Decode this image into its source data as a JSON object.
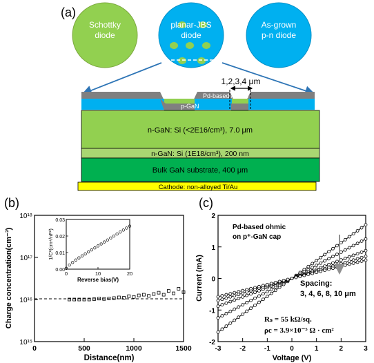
{
  "panel_a": {
    "label": "(a)",
    "circles": [
      {
        "line1": "Schottky",
        "line2": "diode"
      },
      {
        "line1": "planar-JBS",
        "line2": "diode"
      },
      {
        "line1": "As-grown",
        "line2": "p-n diode"
      }
    ],
    "spacing_label": "1,2,3,4 μm",
    "anode_label": "Pd-based Anode",
    "pgan_label": "p-GaN",
    "layers": {
      "drift": "n-GaN: Si (<2E16/cm³), 7.0 μm",
      "buffer": "n-GaN: Si (1E18/cm³), 200 nm",
      "substrate": "Bulk GaN substrate, 400 μm",
      "cathode": "Cathode: non-alloyed Ti/Au"
    },
    "colors": {
      "schottky": "#92d050",
      "jbs": "#00b0f0",
      "drift": "#92d050",
      "substrate": "#00b050",
      "cathode": "#ffff00",
      "anode": "#808080",
      "arrow": "#2e75b6"
    }
  },
  "panel_b": {
    "label": "(b)",
    "ylabel": "Charge concentration(cm⁻³)",
    "xlabel": "Distance(nm)",
    "xticks": [
      "0",
      "500",
      "1000",
      "1500"
    ],
    "yticks": [
      "10¹⁵",
      "10¹⁶",
      "10¹⁷",
      "10¹⁸"
    ],
    "inset": {
      "ylabel": "1/C²(cm⁴/nF²)",
      "xlabel": "Reverse bias(V)",
      "xticks": [
        "0",
        "10",
        "20"
      ],
      "yticks": [
        "0.00",
        "0.01",
        "0.02",
        "0.03"
      ]
    }
  },
  "panel_c": {
    "label": "(c)",
    "title_line1": "Pd-based ohmic",
    "title_line2": "on p⁺-GaN cap",
    "spacing_title": "Spacing:",
    "spacing_values": "3, 4, 6, 8, 10 μm",
    "rs": "Rₛ = 55 kΩ/sq.",
    "rhoc": "ρc = 3.9×10⁻⁵ Ω · cm²",
    "ylabel": "Current (mA)",
    "xlabel": "Voltage (V)",
    "xticks": [
      "-3",
      "-2",
      "-1",
      "0",
      "1",
      "2",
      "3"
    ],
    "yticks": [
      "-2",
      "-1",
      "0",
      "1",
      "2"
    ]
  },
  "chart_data": [
    {
      "type": "scatter",
      "xlabel": "Distance(nm)",
      "ylabel": "Charge concentration(cm⁻³)",
      "xlim": [
        0,
        1500
      ],
      "ylim": [
        1000000000000000.0,
        1e+18
      ],
      "yscale": "log",
      "reference_line": 1e+16,
      "series": [
        {
          "x": [
            350,
            400,
            450,
            500,
            550,
            600,
            650,
            700,
            750,
            800,
            850,
            900,
            950,
            1000,
            1050,
            1100,
            1150,
            1200,
            1250,
            1300,
            1350,
            1400,
            1450,
            1500
          ],
          "values": [
            1e+16,
            1e+16,
            1e+16,
            1e+16,
            1e+16,
            1.02e+16,
            1.05e+16,
            1.03e+16,
            1.06e+16,
            1.08e+16,
            1.12e+16,
            1.1e+16,
            1.2e+16,
            1.15e+16,
            1.25e+16,
            1.3e+16,
            1.22e+16,
            1.35e+16,
            1.45e+16,
            1.3e+16,
            1.6e+16,
            1.4e+16,
            1.8e+16,
            1.5e+16
          ]
        }
      ]
    },
    {
      "type": "scatter",
      "xlabel": "Reverse bias(V)",
      "ylabel": "1/C²(cm⁴/nF²)",
      "xlim": [
        0,
        20
      ],
      "ylim": [
        0,
        0.03
      ],
      "series": [
        {
          "x": [
            0,
            1,
            2,
            3,
            4,
            5,
            6,
            7,
            8,
            9,
            10,
            11,
            12,
            13,
            14,
            15,
            16,
            17,
            18,
            19,
            20
          ],
          "values": [
            0.0005,
            0.0025,
            0.004,
            0.0055,
            0.0068,
            0.008,
            0.0092,
            0.0104,
            0.0116,
            0.0128,
            0.014,
            0.0152,
            0.0164,
            0.0176,
            0.0188,
            0.02,
            0.0212,
            0.0224,
            0.0236,
            0.0248,
            0.026
          ]
        }
      ]
    },
    {
      "type": "line",
      "xlabel": "Voltage (V)",
      "ylabel": "Current (mA)",
      "xlim": [
        -3,
        3
      ],
      "ylim": [
        -2,
        2
      ],
      "x": [
        -3,
        -2.5,
        -2,
        -1.5,
        -1,
        -0.5,
        0,
        0.5,
        1,
        1.5,
        2,
        2.5,
        3
      ],
      "series": [
        {
          "name": "3 μm",
          "values": [
            -1.7,
            -1.417,
            -1.133,
            -0.85,
            -0.567,
            -0.283,
            0,
            0.283,
            0.567,
            0.85,
            1.133,
            1.417,
            1.7
          ]
        },
        {
          "name": "4 μm",
          "values": [
            -1.25,
            -1.042,
            -0.833,
            -0.625,
            -0.417,
            -0.208,
            0,
            0.208,
            0.417,
            0.625,
            0.833,
            1.042,
            1.25
          ]
        },
        {
          "name": "6 μm",
          "values": [
            -0.88,
            -0.733,
            -0.587,
            -0.44,
            -0.293,
            -0.147,
            0,
            0.147,
            0.293,
            0.44,
            0.587,
            0.733,
            0.88
          ]
        },
        {
          "name": "8 μm",
          "values": [
            -0.7,
            -0.583,
            -0.467,
            -0.35,
            -0.233,
            -0.117,
            0,
            0.117,
            0.233,
            0.35,
            0.467,
            0.583,
            0.7
          ]
        },
        {
          "name": "10 μm",
          "values": [
            -0.58,
            -0.483,
            -0.387,
            -0.29,
            -0.193,
            -0.097,
            0,
            0.097,
            0.193,
            0.29,
            0.387,
            0.483,
            0.58
          ]
        }
      ]
    }
  ]
}
